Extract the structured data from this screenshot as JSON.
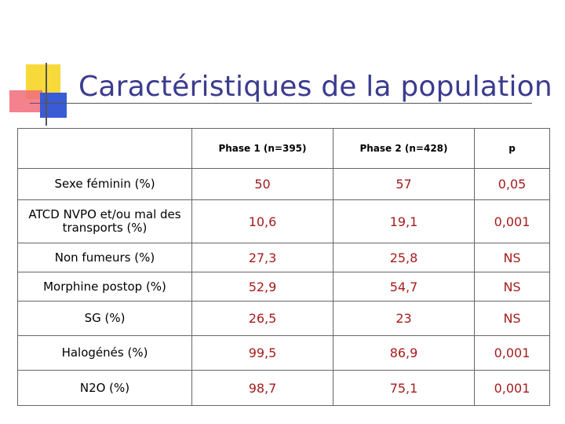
{
  "slide": {
    "title": "Caractéristiques de la population"
  },
  "table": {
    "headers": [
      "",
      "Phase 1 (n=395)",
      "Phase 2 (n=428)",
      "p"
    ],
    "rows": [
      {
        "label": "Sexe féminin (%)",
        "phase1": "50",
        "phase2": "57",
        "p": "0,05"
      },
      {
        "label": "ATCD NVPO et/ou mal des transports (%)",
        "phase1": "10,6",
        "phase2": "19,1",
        "p": "0,001"
      },
      {
        "label": "Non fumeurs (%)",
        "phase1": "27,3",
        "phase2": "25,8",
        "p": "NS"
      },
      {
        "label": "Morphine postop (%)",
        "phase1": "52,9",
        "phase2": "54,7",
        "p": "NS"
      },
      {
        "label": "SG (%)",
        "phase1": "26,5",
        "phase2": "23",
        "p": "NS"
      },
      {
        "label": "Halogénés (%)",
        "phase1": "99,5",
        "phase2": "86,9",
        "p": "0,001"
      },
      {
        "label": "N2O (%)",
        "phase1": "98,7",
        "phase2": "75,1",
        "p": "0,001"
      }
    ]
  },
  "colors": {
    "title": "#3b3b8f",
    "values": "#a51c1c",
    "accent_yellow": "#f7d93a",
    "accent_red": "#f26b7a",
    "accent_blue": "#3a5bd6"
  }
}
